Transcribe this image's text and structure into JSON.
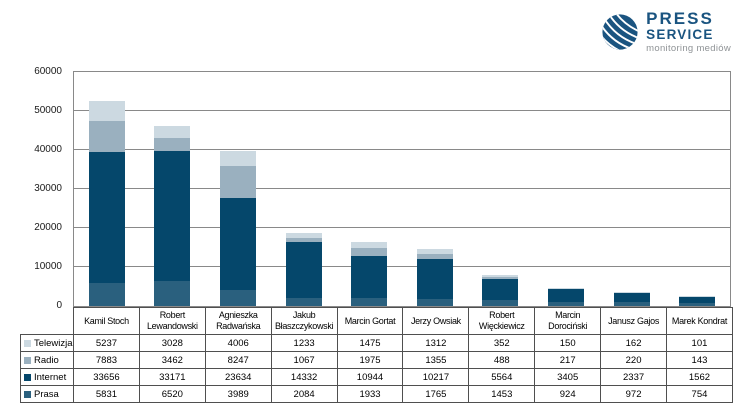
{
  "logo": {
    "line1": "PRESS",
    "line2": "SERVICE",
    "tagline": "monitoring mediów",
    "navy": "#1a5480",
    "tagline_gray": "#8f9396"
  },
  "chart_data": {
    "type": "bar",
    "stacked": true,
    "title": "",
    "xlabel": "",
    "ylabel": "",
    "ylim": [
      0,
      60000
    ],
    "ytick_interval": 10000,
    "yticks": [
      "0",
      "10000",
      "20000",
      "30000",
      "40000",
      "50000",
      "60000"
    ],
    "grid": true,
    "legend_position": "data-table-left",
    "categories": [
      "Kamil Stoch",
      "Robert Lewandowski",
      "Agnieszka Radwańska",
      "Jakub Błaszczykowski",
      "Marcin Gortat",
      "Jerzy Owsiak",
      "Robert Więckiewicz",
      "Marcin Dorociński",
      "Janusz Gajos",
      "Marek Kondrat"
    ],
    "series": [
      {
        "name": "Telewizja",
        "color": "#ccd9e1",
        "values": [
          5237,
          3028,
          4006,
          1233,
          1475,
          1312,
          352,
          150,
          162,
          101
        ]
      },
      {
        "name": "Radio",
        "color": "#9ab0bf",
        "values": [
          7883,
          3462,
          8247,
          1067,
          1975,
          1355,
          488,
          217,
          220,
          143
        ]
      },
      {
        "name": "Internet",
        "color": "#05476b",
        "values": [
          33656,
          33171,
          23634,
          14332,
          10944,
          10217,
          5564,
          3405,
          2337,
          1562
        ]
      },
      {
        "name": "Prasa",
        "color": "#2a607e",
        "values": [
          5831,
          6520,
          3989,
          2084,
          1933,
          1765,
          1453,
          924,
          972,
          754
        ]
      }
    ],
    "stack_order_bottom_to_top": [
      "Prasa",
      "Internet",
      "Radio",
      "Telewizja"
    ],
    "colors": {
      "gridline": "#898989",
      "table_border": "#4f4f4f"
    }
  }
}
